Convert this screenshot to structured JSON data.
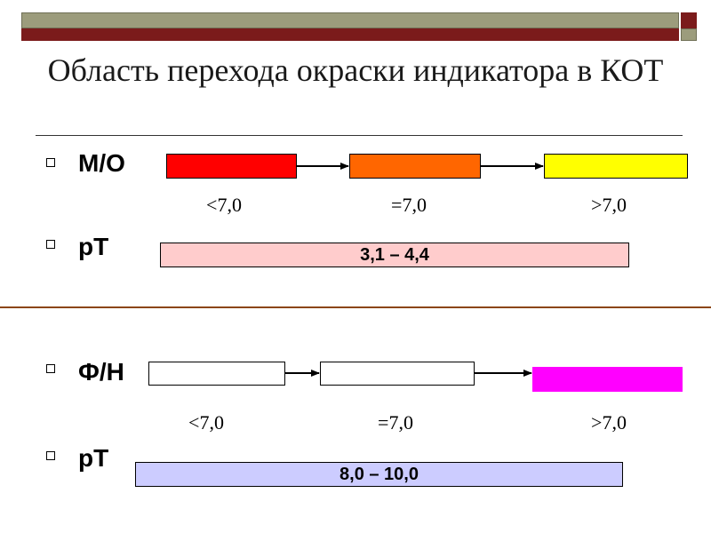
{
  "title": "Область перехода окраски индикатора в КОТ",
  "colors": {
    "header_bar_olive": "#9c9c7c",
    "header_bar_maroon": "#7b1b1b",
    "divider_brown": "#8b4513",
    "mo_acid": "#ff0000",
    "mo_neutral": "#ff6600",
    "mo_base": "#ffff00",
    "mo_range_fill": "#ffcccc",
    "fn_acid": "#ffffff",
    "fn_neutral": "#ffffff",
    "fn_base": "#ff00ff",
    "fn_range_fill": "#ccccff"
  },
  "methyl_orange": {
    "label": "М/О",
    "ph_labels": [
      "<7,0",
      "=7,0",
      ">7,0"
    ],
    "pt_label": "рТ",
    "pt_range": "3,1 – 4,4"
  },
  "phenolphthalein": {
    "label": "Ф/Н",
    "ph_labels": [
      "<7,0",
      "=7,0",
      ">7,0"
    ],
    "pt_label": "рТ",
    "pt_range": "8,0 – 10,0"
  }
}
